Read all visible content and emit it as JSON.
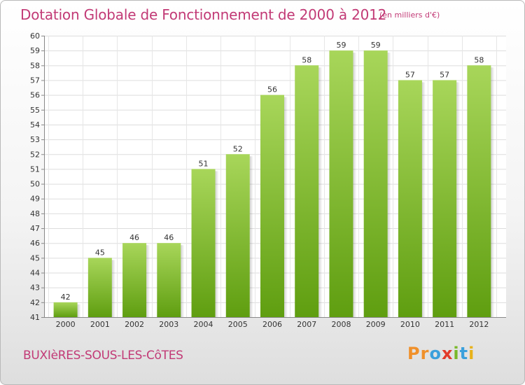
{
  "header": {
    "title": "Dotation Globale de Fonctionnement de 2000 à 2012",
    "unit": "(en milliers d'€)"
  },
  "footer": {
    "commune": "BUXIèRES-SOUS-LES-CôTES",
    "logo": {
      "letters": [
        "P",
        "r",
        "o",
        "x",
        "i",
        "t",
        "i"
      ],
      "colors": [
        "#f0902a",
        "#f0902a",
        "#3aa0dc",
        "#e23a2a",
        "#7ab829",
        "#3aa0dc",
        "#e8b21a"
      ]
    }
  },
  "colors": {
    "bar_top": "#a8d65a",
    "bar_bottom": "#5f9e10",
    "title": "#c23a76"
  },
  "chart_data": {
    "type": "bar",
    "categories": [
      "2000",
      "2001",
      "2002",
      "2003",
      "2004",
      "2005",
      "2006",
      "2007",
      "2008",
      "2009",
      "2010",
      "2011",
      "2012"
    ],
    "values": [
      42,
      45,
      46,
      46,
      51,
      52,
      56,
      58,
      59,
      59,
      57,
      57,
      58
    ],
    "ylim": [
      41,
      60
    ],
    "yticks": [
      41,
      42,
      43,
      44,
      45,
      46,
      47,
      48,
      49,
      50,
      51,
      52,
      53,
      54,
      55,
      56,
      57,
      58,
      59,
      60
    ],
    "grid": true,
    "legend": "none",
    "data_labels": true
  }
}
